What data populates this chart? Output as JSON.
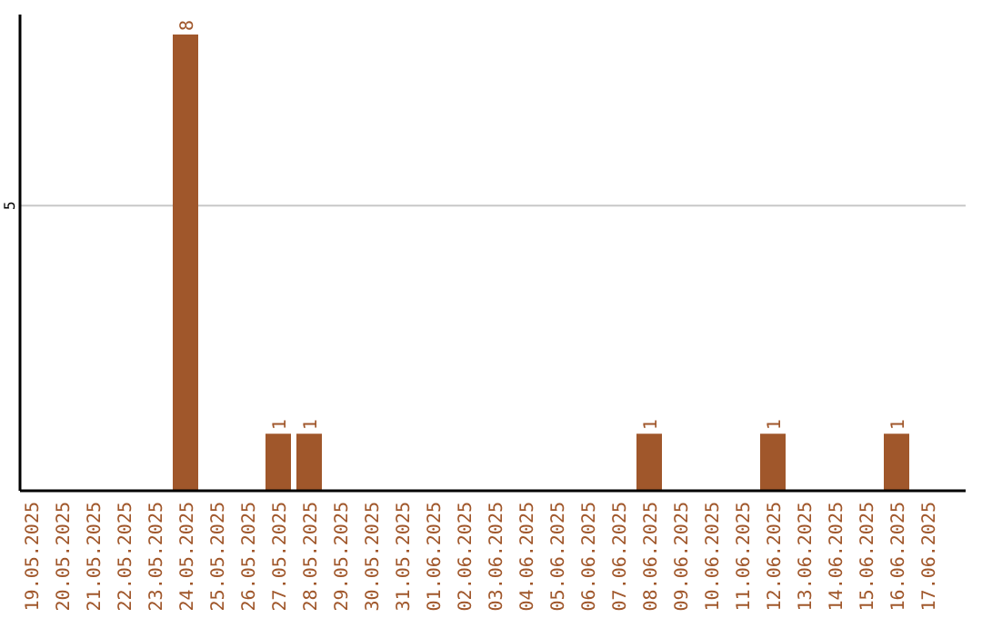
{
  "chart_data": {
    "type": "bar",
    "categories": [
      "19.05.2025",
      "20.05.2025",
      "21.05.2025",
      "22.05.2025",
      "23.05.2025",
      "24.05.2025",
      "25.05.2025",
      "26.05.2025",
      "27.05.2025",
      "28.05.2025",
      "29.05.2025",
      "30.05.2025",
      "31.05.2025",
      "01.06.2025",
      "02.06.2025",
      "03.06.2025",
      "04.06.2025",
      "05.06.2025",
      "06.06.2025",
      "07.06.2025",
      "08.06.2025",
      "09.06.2025",
      "10.06.2025",
      "11.06.2025",
      "12.06.2025",
      "13.06.2025",
      "14.06.2025",
      "15.06.2025",
      "16.06.2025",
      "17.06.2025"
    ],
    "values": [
      0,
      0,
      0,
      0,
      0,
      8,
      0,
      0,
      1,
      1,
      0,
      0,
      0,
      0,
      0,
      0,
      0,
      0,
      0,
      0,
      1,
      0,
      0,
      0,
      1,
      0,
      0,
      0,
      1,
      0
    ],
    "value_labels": [
      null,
      null,
      null,
      null,
      null,
      "8",
      null,
      null,
      "1",
      "1",
      null,
      null,
      null,
      null,
      null,
      null,
      null,
      null,
      null,
      null,
      "1",
      null,
      null,
      null,
      "1",
      null,
      null,
      null,
      "1",
      null
    ],
    "color": "#a0572b",
    "ylim": [
      0,
      8.35
    ],
    "yticks": [
      5
    ],
    "grid": "y"
  }
}
